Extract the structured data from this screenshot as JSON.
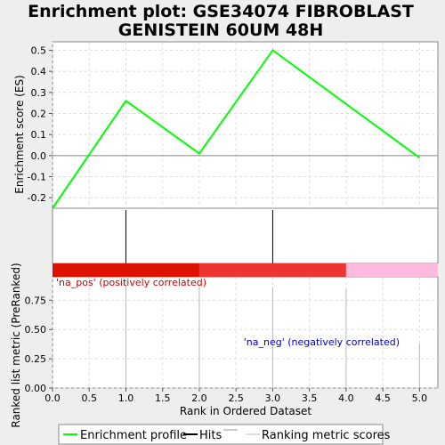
{
  "chart_data": {
    "type": "line",
    "title_lines": [
      "Enrichment plot: GSE34074 FIBROBLAST",
      "GENISTEIN 60UM 48H"
    ],
    "xlabel": "Rank in Ordered Dataset",
    "xlim": [
      0,
      5.25
    ],
    "x_ticks": [
      "0.0",
      "0.5",
      "1.0",
      "1.5",
      "2.0",
      "2.5",
      "3.0",
      "3.5",
      "4.0",
      "4.5",
      "5.0"
    ],
    "es_panel": {
      "ylabel": "Enrichment score (ES)",
      "ylim": [
        -0.25,
        0.54
      ],
      "y_ticks": [
        "0.5",
        "0.4",
        "0.3",
        "0.2",
        "0.1",
        "0.0",
        "-0.1",
        "-0.2"
      ],
      "series": [
        {
          "name": "Enrichment profile",
          "color": "#00ff00",
          "x": [
            0,
            1,
            2,
            3,
            5
          ],
          "y": [
            -0.25,
            0.26,
            0.01,
            0.5,
            -0.01
          ]
        }
      ]
    },
    "hits_panel": {
      "color": "#000000",
      "hits": [
        1,
        3
      ]
    },
    "color_bar": [
      {
        "from": 0,
        "to": 2,
        "color": "#dd1100"
      },
      {
        "from": 2,
        "to": 4,
        "color": "#ee3333"
      },
      {
        "from": 4,
        "to": 5.25,
        "color": "#ffbbdd"
      }
    ],
    "metric_panel": {
      "ylabel": "Ranked list metric (PreRanked)",
      "ylim": [
        0,
        0.95
      ],
      "y_ticks": [
        "0.75",
        "0.50",
        "0.25",
        "0.00"
      ],
      "color": "#bbbbbb",
      "x": [
        1,
        2,
        3,
        4,
        5
      ],
      "values": [
        0.88,
        0.88,
        0.86,
        0.85,
        0.38
      ]
    },
    "annotations": {
      "positive": "'na_pos' (positively correlated)",
      "negative": "'na_neg' (negatively correlated)"
    },
    "legend": [
      {
        "label": "Enrichment profile",
        "color": "#00ff00"
      },
      {
        "label": "Hits",
        "color": "#000000"
      },
      {
        "label": "",
        "color": "#999999"
      },
      {
        "label": "Ranking metric scores",
        "color": "#bbbbbb"
      }
    ]
  }
}
